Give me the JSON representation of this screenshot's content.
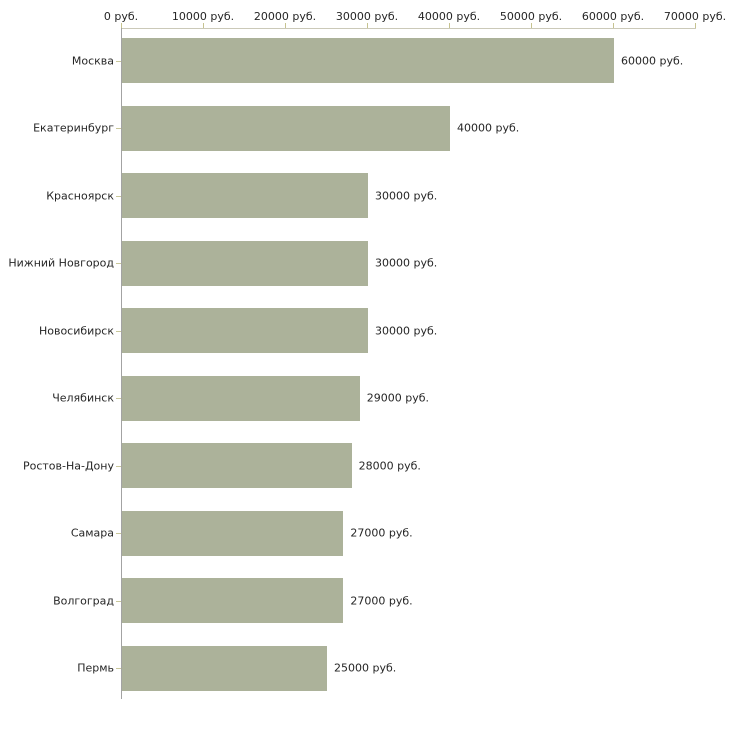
{
  "chart_data": {
    "type": "bar",
    "orientation": "horizontal",
    "title": "",
    "xlabel": "",
    "ylabel": "",
    "xlim": [
      0,
      70000
    ],
    "grid": false,
    "legend": false,
    "unit_suffix": " руб.",
    "x_ticks": [
      {
        "label": "0 руб.",
        "value": 0
      },
      {
        "label": "10000 руб.",
        "value": 10000
      },
      {
        "label": "20000 руб.",
        "value": 20000
      },
      {
        "label": "30000 руб.",
        "value": 30000
      },
      {
        "label": "40000 руб.",
        "value": 40000
      },
      {
        "label": "50000 руб.",
        "value": 50000
      },
      {
        "label": "60000 руб.",
        "value": 60000
      },
      {
        "label": "70000 руб.",
        "value": 70000
      }
    ],
    "categories": [
      "Москва",
      "Екатеринбург",
      "Красноярск",
      "Нижний Новгород",
      "Новосибирск",
      "Челябинск",
      "Ростов-На-Дону",
      "Самара",
      "Волгоград",
      "Пермь"
    ],
    "values": [
      60000,
      40000,
      30000,
      30000,
      30000,
      29000,
      28000,
      27000,
      27000,
      25000
    ],
    "value_labels": [
      "60000 руб.",
      "40000 руб.",
      "30000 руб.",
      "30000 руб.",
      "30000 руб.",
      "29000 руб.",
      "28000 руб.",
      "27000 руб.",
      "27000 руб.",
      "25000 руб."
    ],
    "colors": {
      "bar": "#acb29a",
      "x_axis_line": "#cbc9b8",
      "y_axis_line": "#a3a3a3",
      "x_tick": "#c6c390",
      "category_tick": "#c9c79a",
      "text": "#262626",
      "background": "#ffffff"
    }
  }
}
